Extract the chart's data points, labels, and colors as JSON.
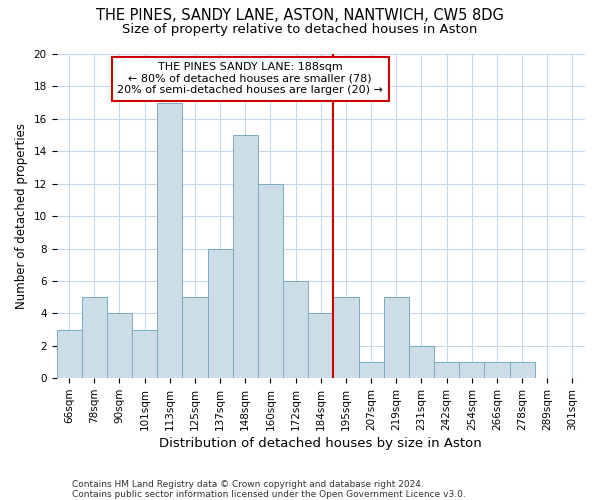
{
  "title1": "THE PINES, SANDY LANE, ASTON, NANTWICH, CW5 8DG",
  "title2": "Size of property relative to detached houses in Aston",
  "xlabel": "Distribution of detached houses by size in Aston",
  "ylabel": "Number of detached properties",
  "categories": [
    "66sqm",
    "78sqm",
    "90sqm",
    "101sqm",
    "113sqm",
    "125sqm",
    "137sqm",
    "148sqm",
    "160sqm",
    "172sqm",
    "184sqm",
    "195sqm",
    "207sqm",
    "219sqm",
    "231sqm",
    "242sqm",
    "254sqm",
    "266sqm",
    "278sqm",
    "289sqm",
    "301sqm"
  ],
  "values": [
    3,
    5,
    4,
    3,
    17,
    5,
    8,
    15,
    12,
    6,
    4,
    5,
    1,
    5,
    2,
    1,
    1,
    1,
    1,
    0,
    0
  ],
  "bar_color": "#ccdde8",
  "bar_edge_color": "#7aaabb",
  "vline_color": "#cc0000",
  "annotation_line1": "THE PINES SANDY LANE: 188sqm",
  "annotation_line2": "← 80% of detached houses are smaller (78)",
  "annotation_line3": "20% of semi-detached houses are larger (20) →",
  "annotation_box_color": "#cc0000",
  "ylim": [
    0,
    20
  ],
  "yticks": [
    0,
    2,
    4,
    6,
    8,
    10,
    12,
    14,
    16,
    18,
    20
  ],
  "footer1": "Contains HM Land Registry data © Crown copyright and database right 2024.",
  "footer2": "Contains public sector information licensed under the Open Government Licence v3.0.",
  "background_color": "#ffffff",
  "grid_color": "#c8d8e8",
  "title1_fontsize": 10.5,
  "title2_fontsize": 9.5,
  "xlabel_fontsize": 9.5,
  "ylabel_fontsize": 8.5,
  "tick_fontsize": 7.5,
  "footer_fontsize": 6.5,
  "ann_fontsize": 8.0
}
